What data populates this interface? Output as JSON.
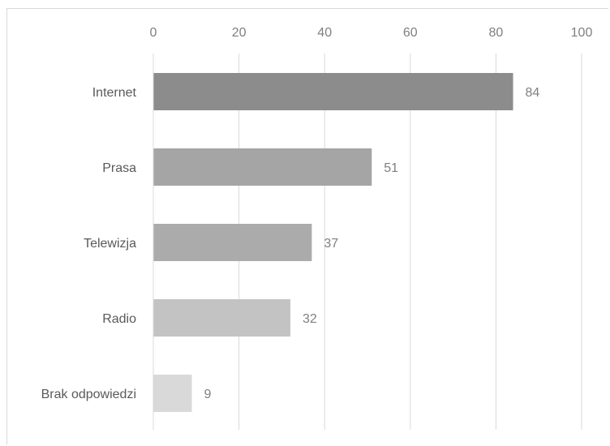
{
  "chart_data": {
    "type": "bar",
    "orientation": "horizontal",
    "categories": [
      "Internet",
      "Prasa",
      "Telewizja",
      "Radio",
      "Brak odpowiedzi"
    ],
    "values": [
      84,
      51,
      37,
      32,
      9
    ],
    "data_labels": [
      "84",
      "51",
      "37",
      "32",
      "9"
    ],
    "bar_colors": [
      "#8c8c8c",
      "#a5a5a5",
      "#ababab",
      "#c3c3c3",
      "#d9d9d9"
    ],
    "xlim": [
      0,
      100
    ],
    "x_ticks": [
      0,
      20,
      40,
      60,
      80,
      100
    ],
    "x_tick_labels": [
      "0",
      "20",
      "40",
      "60",
      "80",
      "100"
    ],
    "x_axis_position": "top",
    "grid": true,
    "legend": "none"
  }
}
